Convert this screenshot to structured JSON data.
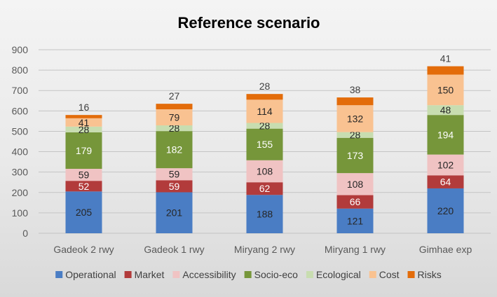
{
  "chart_data": {
    "type": "bar",
    "stacked": true,
    "title": "Reference scenario",
    "xlabel": "",
    "ylabel": "",
    "ylim": [
      0,
      900
    ],
    "yticks": [
      0,
      100,
      200,
      300,
      400,
      500,
      600,
      700,
      800,
      900
    ],
    "grid": true,
    "legend_position": "bottom",
    "categories": [
      "Gadeok 2 rwy",
      "Gadeok 1 rwy",
      "Miryang 2 rwy",
      "Miryang 1 rwy",
      "Gimhae exp"
    ],
    "series": [
      {
        "name": "Operational",
        "color": "#4a7dc4",
        "label_color": "#262626",
        "values": [
          205,
          201,
          188,
          121,
          220
        ]
      },
      {
        "name": "Market",
        "color": "#b23b3b",
        "label_color": "#ffffff",
        "values": [
          52,
          59,
          62,
          66,
          64
        ]
      },
      {
        "name": "Accessibility",
        "color": "#f0c3c3",
        "label_color": "#262626",
        "values": [
          59,
          59,
          108,
          108,
          102
        ]
      },
      {
        "name": "Socio-eco",
        "color": "#76963a",
        "label_color": "#ffffff",
        "values": [
          179,
          182,
          155,
          173,
          194
        ]
      },
      {
        "name": "Ecological",
        "color": "#c8ddb0",
        "label_color": "#262626",
        "values": [
          28,
          28,
          28,
          28,
          48
        ]
      },
      {
        "name": "Cost",
        "color": "#f9c291",
        "label_color": "#262626",
        "values": [
          41,
          79,
          114,
          132,
          150
        ]
      },
      {
        "name": "Risks",
        "color": "#e36c0a",
        "label_color": "#262626",
        "values": [
          16,
          27,
          28,
          38,
          41
        ]
      }
    ]
  }
}
